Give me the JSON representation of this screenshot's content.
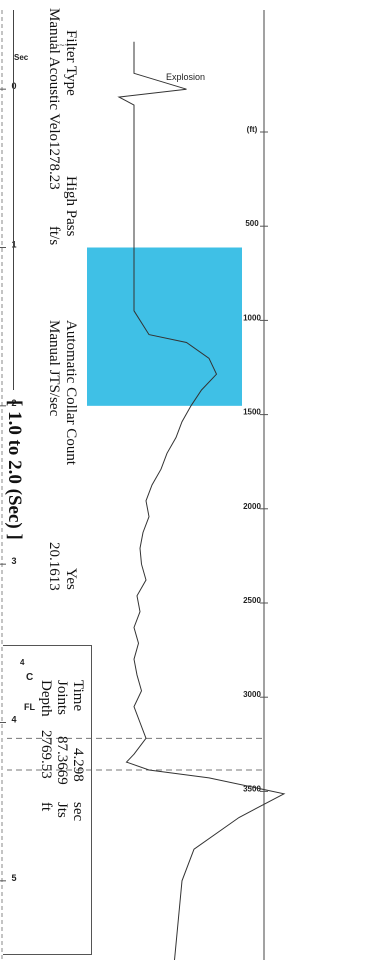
{
  "chart_data": {
    "type": "line",
    "title": "",
    "xlabel": "",
    "ylabel": "",
    "time_ticks": [
      "0",
      "1",
      "2",
      "3",
      "4",
      "5"
    ],
    "time_unit": "Sec",
    "time_range": [
      -0.5,
      5.5
    ],
    "depth_ticks": [
      "(ft)",
      "500",
      "1000",
      "1500",
      "2000",
      "2500",
      "3000",
      "3500"
    ],
    "annotations": {
      "explosion": "Explosion",
      "pulse_top": "~~~",
      "cursor_c": "C",
      "cursor_4": "4",
      "fl": "FL"
    },
    "highlight_range_sec": [
      1.0,
      2.0
    ],
    "highlight_color": "#3fc0e6",
    "cursor_lines_sec": [
      4.1,
      4.3
    ],
    "series": [
      {
        "x": [
          -0.3,
          -0.1,
          0.0,
          0.05,
          0.1,
          0.2,
          0.4,
          0.6,
          0.8,
          1.0,
          1.2,
          1.4,
          1.55,
          1.6,
          1.7,
          1.8,
          1.9,
          2.0,
          2.1,
          2.2,
          2.3,
          2.4,
          2.5,
          2.6,
          2.7,
          2.8,
          2.9,
          3.0,
          3.1,
          3.2,
          3.3,
          3.4,
          3.5,
          3.6,
          3.7,
          3.8,
          3.9,
          4.0,
          4.1,
          4.2,
          4.25,
          4.3,
          4.35,
          4.45,
          4.6,
          4.8,
          5.0,
          5.2,
          5.4,
          5.5
        ],
        "y": [
          0.0,
          0.0,
          0.35,
          -0.1,
          0.0,
          0.0,
          0.0,
          0.0,
          0.0,
          0.0,
          0.0,
          0.0,
          0.1,
          0.35,
          0.5,
          0.55,
          0.45,
          0.38,
          0.32,
          0.28,
          0.22,
          0.18,
          0.12,
          0.08,
          0.1,
          0.06,
          0.04,
          0.05,
          0.08,
          0.02,
          0.04,
          0.0,
          0.03,
          0.0,
          0.02,
          0.05,
          0.0,
          0.04,
          0.08,
          0.0,
          -0.05,
          0.1,
          0.5,
          1.0,
          0.7,
          0.4,
          0.32,
          0.3,
          0.28,
          0.27
        ]
      }
    ]
  },
  "info": {
    "filter_type_label": "Filter Type",
    "filter_type_value": "High Pass",
    "velocity_label": "Manual Acoustic Velo",
    "velocity_value": "1278.23",
    "velocity_unit": "ft/s",
    "collar_label": "Automatic Collar Count",
    "collar_value": "Yes",
    "jts_label": "Manual JTS/sec",
    "jts_value": "20.1613",
    "time_label": "Time",
    "time_value": "4.298",
    "time_unit": "sec",
    "joints_label": "Joints",
    "joints_value": "87.3669",
    "joints_unit": "Jts",
    "depth_label": "Depth",
    "depth_value": "2769.53",
    "depth_unit": "ft",
    "range_text": "[ 1.0  to  2.0 (Sec) ]"
  }
}
